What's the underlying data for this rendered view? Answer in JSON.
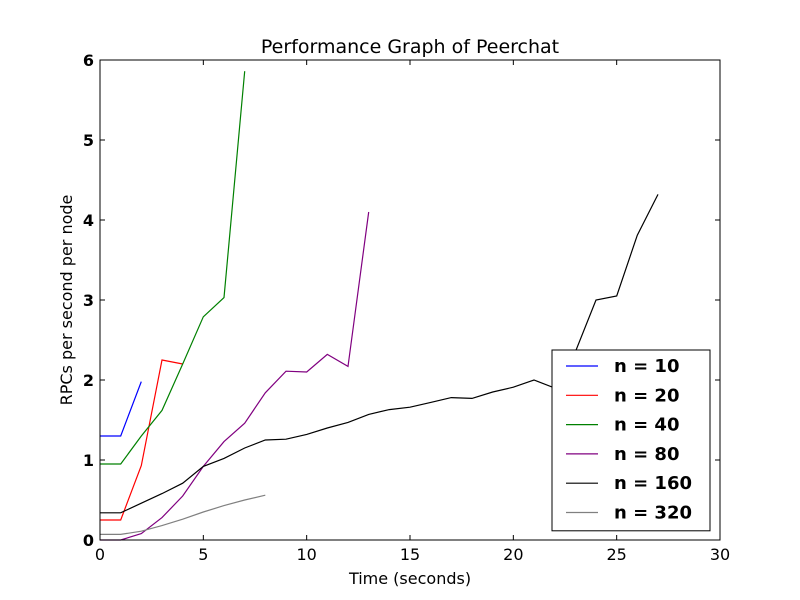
{
  "chart_data": {
    "type": "line",
    "title": "Performance Graph of Peerchat",
    "xlabel": "Time (seconds)",
    "ylabel": "RPCs per second per node",
    "xlim": [
      0,
      30
    ],
    "ylim": [
      0,
      6
    ],
    "xticks": [
      0,
      5,
      10,
      15,
      20,
      25,
      30
    ],
    "yticks": [
      0,
      1,
      2,
      3,
      4,
      5,
      6
    ],
    "grid": false,
    "legend_position": "lower-right",
    "series": [
      {
        "name": "n = 10",
        "color": "#0000ff",
        "x": [
          0,
          1,
          2
        ],
        "y": [
          1.3,
          1.3,
          1.98
        ]
      },
      {
        "name": "n = 20",
        "color": "#ff0000",
        "x": [
          0,
          1,
          2,
          3,
          4
        ],
        "y": [
          0.25,
          0.25,
          0.93,
          2.25,
          2.2
        ]
      },
      {
        "name": "n = 40",
        "color": "#008000",
        "x": [
          0,
          1,
          2,
          3,
          4,
          5,
          6,
          7
        ],
        "y": [
          0.95,
          0.95,
          1.3,
          1.62,
          2.2,
          2.79,
          3.03,
          5.86
        ]
      },
      {
        "name": "n = 80",
        "color": "#800080",
        "x": [
          0,
          1,
          2,
          3,
          4,
          5,
          6,
          7,
          8,
          9,
          10,
          11,
          12,
          13
        ],
        "y": [
          0.0,
          0.0,
          0.08,
          0.28,
          0.55,
          0.92,
          1.23,
          1.46,
          1.84,
          2.11,
          2.1,
          2.32,
          2.17,
          4.1
        ]
      },
      {
        "name": "n = 160",
        "color": "#000000",
        "x": [
          0,
          1,
          2,
          3,
          4,
          5,
          6,
          7,
          8,
          9,
          10,
          11,
          12,
          13,
          14,
          15,
          16,
          17,
          18,
          19,
          20,
          21,
          22,
          23,
          24,
          25,
          26,
          27
        ],
        "y": [
          0.34,
          0.34,
          0.46,
          0.58,
          0.71,
          0.92,
          1.02,
          1.15,
          1.25,
          1.26,
          1.32,
          1.4,
          1.47,
          1.57,
          1.63,
          1.66,
          1.72,
          1.78,
          1.77,
          1.85,
          1.91,
          2.0,
          1.9,
          2.35,
          3.0,
          3.05,
          3.81,
          4.32
        ]
      },
      {
        "name": "n = 320",
        "color": "#808080",
        "x": [
          0,
          1,
          2,
          3,
          4,
          5,
          6,
          7,
          8
        ],
        "y": [
          0.07,
          0.07,
          0.11,
          0.18,
          0.26,
          0.35,
          0.43,
          0.5,
          0.56
        ]
      }
    ]
  }
}
